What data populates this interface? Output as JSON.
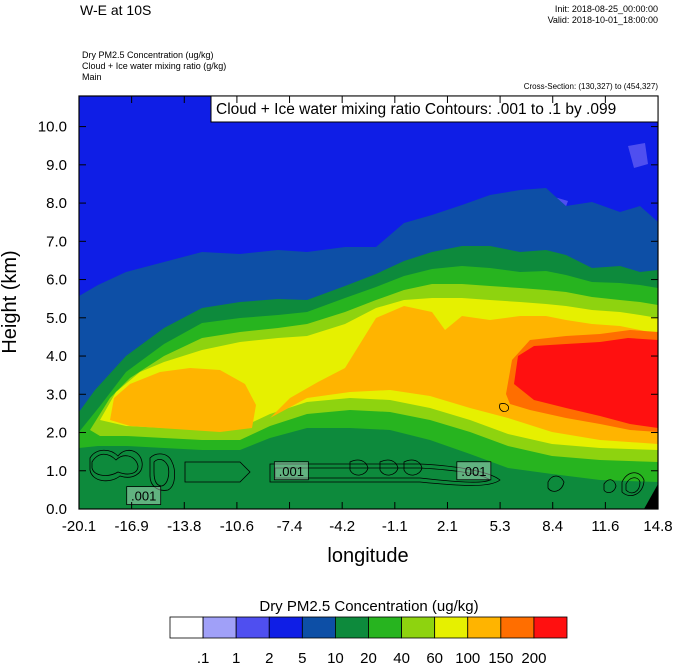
{
  "header": {
    "title": "W-E at 10S",
    "init": "Init: 2018-08-25_00:00:00",
    "valid": "Valid: 2018-10-01_18:00:00",
    "field1": "Dry PM2.5 Concentration   (ug/kg)",
    "field2": "Cloud + Ice water mixing ratio   (g/kg)",
    "field3": "Main",
    "cross_section": "Cross-Section: (130,327) to (454,327)"
  },
  "chart_data": {
    "type": "heatmap",
    "contour_label": "Cloud + Ice water mixing ratio Contours: .001 to .1 by .099",
    "xlabel": "longitude",
    "ylabel": "Height (km)",
    "xlim": [
      -20.1,
      14.8
    ],
    "ylim": [
      0,
      10.8
    ],
    "x_ticks": [
      "-20.1",
      "-16.9",
      "-13.8",
      "-10.6",
      "-7.4",
      "-4.2",
      "-1.1",
      "2.1",
      "5.3",
      "8.4",
      "11.6",
      "14.8"
    ],
    "y_ticks": [
      {
        "v": 0,
        "label": "0.0"
      },
      {
        "v": 1,
        "label": "1.0"
      },
      {
        "v": 2,
        "label": "2.0"
      },
      {
        "v": 3,
        "label": "3.0"
      },
      {
        "v": 4,
        "label": "4.0"
      },
      {
        "v": 5,
        "label": "5.0"
      },
      {
        "v": 6,
        "label": "6.0"
      },
      {
        "v": 7,
        "label": "7.0"
      },
      {
        "v": 8,
        "label": "8.0"
      },
      {
        "v": 9,
        "label": "9.0"
      },
      {
        "v": 10,
        "label": "10.0"
      }
    ],
    "contour_value_labels": [
      {
        "x": -16.2,
        "y": 0.35,
        "text": ".001"
      },
      {
        "x": -7.3,
        "y": 1.0,
        "text": ".001"
      },
      {
        "x": 3.7,
        "y": 1.0,
        "text": ".001"
      }
    ],
    "colorbar": {
      "title": "Dry PM2.5 Concentration  (ug/kg)",
      "colors": [
        "#ffffff",
        "#a0a0f8",
        "#4f4ff0",
        "#0f1ee6",
        "#0d4fa6",
        "#0d8a3c",
        "#27b41f",
        "#8ed30f",
        "#e6f000",
        "#ffb400",
        "#ff6e00",
        "#ff1010"
      ],
      "labels": [
        ".1",
        "1",
        "2",
        "5",
        "10",
        "20",
        "40",
        "60",
        "100",
        "150",
        "200"
      ]
    },
    "pm25_field": {
      "units": "ug/kg",
      "note": "approximate concentration bands by longitude (x) and height in km (y)",
      "bands": [
        {
          "level": ">200",
          "x": [
            5.8,
            14.8
          ],
          "y": [
            2.1,
            4.2
          ]
        },
        {
          "level": "150-200",
          "x": [
            5.2,
            14.8
          ],
          "y": [
            1.9,
            4.6
          ]
        },
        {
          "level": "100-150",
          "x": [
            -17.9,
            -10.7
          ],
          "y": [
            1.6,
            3.3
          ]
        },
        {
          "level": "100-150",
          "x": [
            -7.3,
            14.8
          ],
          "y": [
            1.8,
            5.1
          ]
        },
        {
          "level": "60-100",
          "x": [
            -18.8,
            14.8
          ],
          "y": [
            1.3,
            5.6
          ]
        },
        {
          "level": "40-60",
          "x": [
            -19.3,
            14.8
          ],
          "y": [
            1.0,
            6.0
          ]
        },
        {
          "level": "20-40",
          "x": [
            -19.8,
            14.8
          ],
          "y": [
            0.4,
            6.4
          ]
        },
        {
          "level": "10-20",
          "x": [
            -20.1,
            14.8
          ],
          "y": [
            0.0,
            7.0
          ]
        },
        {
          "level": "5-10",
          "x": [
            -20.1,
            14.8
          ],
          "y": [
            2.2,
            7.5
          ]
        },
        {
          "level": "2-5",
          "x": [
            -20.1,
            14.8
          ],
          "y": [
            0.0,
            10.8
          ]
        },
        {
          "level": "1-2",
          "x": [
            12.5,
            14.8
          ],
          "y": [
            8.0,
            9.0
          ]
        },
        {
          "level": "1-2",
          "x": [
            12.0,
            13.4
          ],
          "y": [
            7.8,
            8.3
          ]
        }
      ]
    }
  }
}
